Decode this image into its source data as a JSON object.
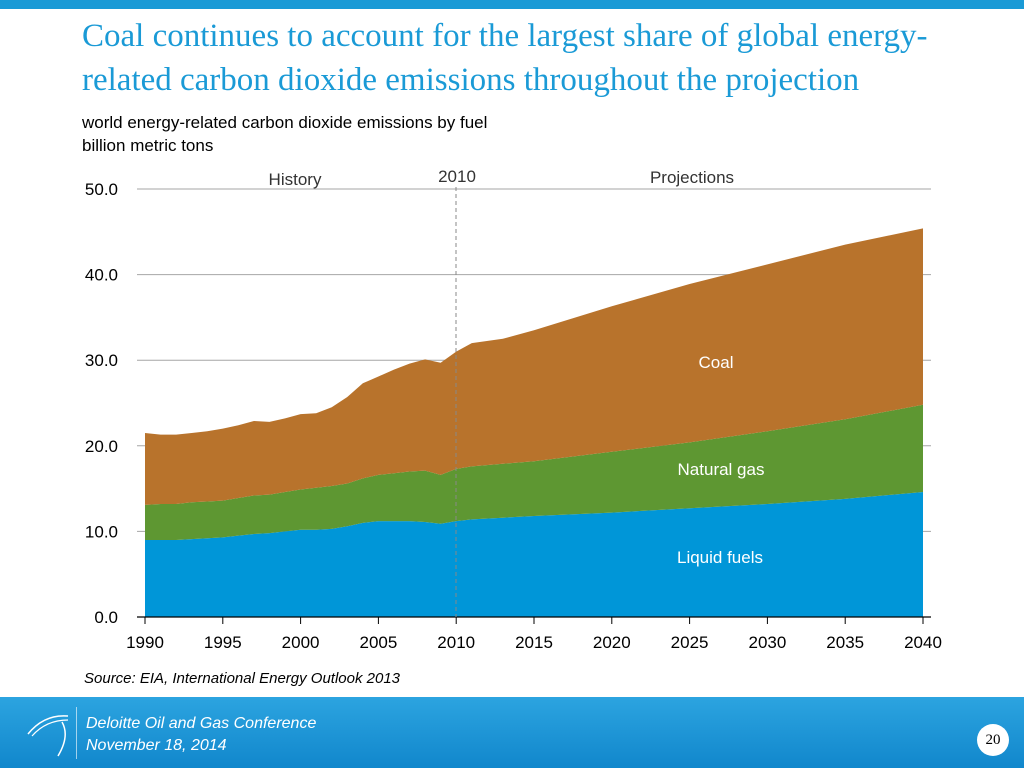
{
  "title": "Coal continues to account for the largest share of global energy-related carbon dioxide emissions throughout the projection",
  "title_line1": "Coal continues to account for the largest share of global energy-",
  "title_line2": "related carbon dioxide emissions throughout the projection",
  "source": "Source:  EIA, International Energy Outlook 2013",
  "footer": {
    "logo": "eia",
    "event": "Deloitte Oil and Gas Conference",
    "date": "November 18, 2014",
    "page": "20"
  },
  "colors": {
    "liquid": "#0096d8",
    "gas": "#5e9732",
    "coal": "#b8732c",
    "title": "#1a9ad6"
  },
  "chart_data": {
    "type": "area",
    "stacked": true,
    "title": "world energy-related carbon dioxide emissions by fuel",
    "ylabel": "billion metric tons",
    "ylim": [
      0,
      50
    ],
    "xlim": [
      1990,
      2040
    ],
    "yticks": [
      "0.0",
      "10.0",
      "20.0",
      "30.0",
      "40.0",
      "50.0"
    ],
    "xticks": [
      "1990",
      "1995",
      "2000",
      "2005",
      "2010",
      "2015",
      "2020",
      "2025",
      "2030",
      "2035",
      "2040"
    ],
    "grid": true,
    "annotations": {
      "history": "History",
      "divider_year": "2010",
      "projections": "Projections"
    },
    "x": [
      1990,
      1991,
      1992,
      1993,
      1994,
      1995,
      1996,
      1997,
      1998,
      1999,
      2000,
      2001,
      2002,
      2003,
      2004,
      2005,
      2006,
      2007,
      2008,
      2009,
      2010,
      2011,
      2013,
      2015,
      2020,
      2025,
      2030,
      2035,
      2040
    ],
    "series": [
      {
        "name": "Liquid fuels",
        "values": [
          9.0,
          9.0,
          9.0,
          9.1,
          9.2,
          9.3,
          9.5,
          9.7,
          9.8,
          10.0,
          10.2,
          10.2,
          10.3,
          10.6,
          11.0,
          11.2,
          11.2,
          11.2,
          11.1,
          10.9,
          11.2,
          11.4,
          11.6,
          11.8,
          12.2,
          12.7,
          13.2,
          13.8,
          14.6
        ]
      },
      {
        "name": "Natural gas",
        "values": [
          4.1,
          4.2,
          4.2,
          4.3,
          4.3,
          4.3,
          4.4,
          4.5,
          4.5,
          4.6,
          4.7,
          4.9,
          5.0,
          5.0,
          5.2,
          5.4,
          5.6,
          5.8,
          6.0,
          5.7,
          6.1,
          6.2,
          6.3,
          6.4,
          7.1,
          7.7,
          8.5,
          9.3,
          10.2
        ]
      },
      {
        "name": "Coal",
        "values": [
          8.4,
          8.1,
          8.1,
          8.1,
          8.2,
          8.4,
          8.5,
          8.7,
          8.5,
          8.6,
          8.8,
          8.7,
          9.2,
          10.1,
          11.1,
          11.5,
          12.1,
          12.6,
          13.0,
          13.1,
          13.7,
          14.4,
          14.6,
          15.3,
          17.0,
          18.5,
          19.5,
          20.4,
          20.6
        ]
      }
    ]
  }
}
